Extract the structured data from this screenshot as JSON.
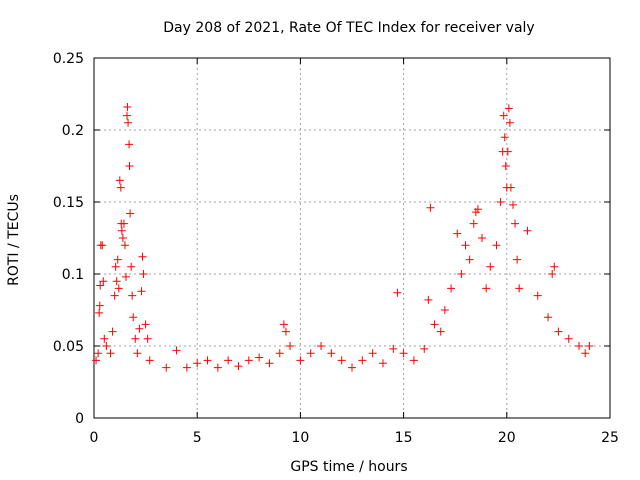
{
  "chart_data": {
    "type": "scatter",
    "title": "Day 208 of 2021, Rate Of TEC Index for receiver valy",
    "xlabel": "GPS time / hours",
    "ylabel": "ROTI / TECUs",
    "xlim": [
      0,
      25
    ],
    "ylim": [
      0,
      0.25
    ],
    "xticks": [
      0,
      5,
      10,
      15,
      20,
      25
    ],
    "yticks": [
      0,
      0.05,
      0.1,
      0.15,
      0.2,
      0.25
    ],
    "xtick_labels": [
      "0",
      "5",
      "10",
      "15",
      "20",
      "25"
    ],
    "ytick_labels": [
      "0",
      "0.05",
      "0.1",
      "0.15",
      "0.2",
      "0.25"
    ],
    "grid": true,
    "marker": "plus",
    "series": [
      {
        "name": "ROTI",
        "color": "#ff0000",
        "points": [
          [
            0.1,
            0.04
          ],
          [
            0.2,
            0.045
          ],
          [
            0.25,
            0.073
          ],
          [
            0.28,
            0.078
          ],
          [
            0.3,
            0.092
          ],
          [
            0.33,
            0.12
          ],
          [
            0.4,
            0.12
          ],
          [
            0.45,
            0.095
          ],
          [
            0.5,
            0.055
          ],
          [
            0.6,
            0.05
          ],
          [
            0.8,
            0.045
          ],
          [
            0.9,
            0.06
          ],
          [
            1.0,
            0.085
          ],
          [
            1.05,
            0.105
          ],
          [
            1.1,
            0.095
          ],
          [
            1.15,
            0.11
          ],
          [
            1.2,
            0.09
          ],
          [
            1.25,
            0.165
          ],
          [
            1.3,
            0.16
          ],
          [
            1.32,
            0.135
          ],
          [
            1.35,
            0.13
          ],
          [
            1.4,
            0.125
          ],
          [
            1.45,
            0.135
          ],
          [
            1.5,
            0.12
          ],
          [
            1.55,
            0.098
          ],
          [
            1.6,
            0.21
          ],
          [
            1.62,
            0.216
          ],
          [
            1.65,
            0.205
          ],
          [
            1.7,
            0.19
          ],
          [
            1.72,
            0.175
          ],
          [
            1.75,
            0.142
          ],
          [
            1.8,
            0.105
          ],
          [
            1.85,
            0.085
          ],
          [
            1.9,
            0.07
          ],
          [
            2.0,
            0.055
          ],
          [
            2.1,
            0.045
          ],
          [
            2.2,
            0.062
          ],
          [
            2.3,
            0.088
          ],
          [
            2.35,
            0.112
          ],
          [
            2.4,
            0.1
          ],
          [
            2.5,
            0.065
          ],
          [
            2.6,
            0.055
          ],
          [
            2.7,
            0.04
          ],
          [
            3.5,
            0.035
          ],
          [
            4.0,
            0.047
          ],
          [
            4.5,
            0.035
          ],
          [
            5.0,
            0.038
          ],
          [
            5.5,
            0.04
          ],
          [
            6.0,
            0.035
          ],
          [
            6.5,
            0.04
          ],
          [
            7.0,
            0.036
          ],
          [
            7.5,
            0.04
          ],
          [
            8.0,
            0.042
          ],
          [
            8.5,
            0.038
          ],
          [
            9.0,
            0.045
          ],
          [
            9.2,
            0.065
          ],
          [
            9.3,
            0.06
          ],
          [
            9.5,
            0.05
          ],
          [
            10.0,
            0.04
          ],
          [
            10.5,
            0.045
          ],
          [
            11.0,
            0.05
          ],
          [
            11.5,
            0.045
          ],
          [
            12.0,
            0.04
          ],
          [
            12.5,
            0.035
          ],
          [
            13.0,
            0.04
          ],
          [
            13.5,
            0.045
          ],
          [
            14.0,
            0.038
          ],
          [
            14.5,
            0.048
          ],
          [
            14.7,
            0.087
          ],
          [
            15.0,
            0.045
          ],
          [
            15.5,
            0.04
          ],
          [
            16.0,
            0.048
          ],
          [
            16.2,
            0.082
          ],
          [
            16.3,
            0.146
          ],
          [
            16.5,
            0.065
          ],
          [
            16.8,
            0.06
          ],
          [
            17.0,
            0.075
          ],
          [
            17.3,
            0.09
          ],
          [
            17.6,
            0.128
          ],
          [
            17.8,
            0.1
          ],
          [
            18.0,
            0.12
          ],
          [
            18.2,
            0.11
          ],
          [
            18.4,
            0.135
          ],
          [
            18.5,
            0.143
          ],
          [
            18.6,
            0.145
          ],
          [
            18.8,
            0.125
          ],
          [
            19.0,
            0.09
          ],
          [
            19.2,
            0.105
          ],
          [
            19.5,
            0.12
          ],
          [
            19.7,
            0.15
          ],
          [
            19.8,
            0.185
          ],
          [
            19.85,
            0.21
          ],
          [
            19.9,
            0.195
          ],
          [
            19.95,
            0.175
          ],
          [
            20.0,
            0.16
          ],
          [
            20.05,
            0.185
          ],
          [
            20.1,
            0.215
          ],
          [
            20.15,
            0.205
          ],
          [
            20.2,
            0.16
          ],
          [
            20.3,
            0.148
          ],
          [
            20.4,
            0.135
          ],
          [
            20.5,
            0.11
          ],
          [
            20.6,
            0.09
          ],
          [
            21.0,
            0.13
          ],
          [
            21.5,
            0.085
          ],
          [
            22.0,
            0.07
          ],
          [
            22.2,
            0.1
          ],
          [
            22.3,
            0.105
          ],
          [
            22.5,
            0.06
          ],
          [
            23.0,
            0.055
          ],
          [
            23.5,
            0.05
          ],
          [
            23.8,
            0.045
          ],
          [
            24.0,
            0.05
          ]
        ]
      }
    ]
  }
}
